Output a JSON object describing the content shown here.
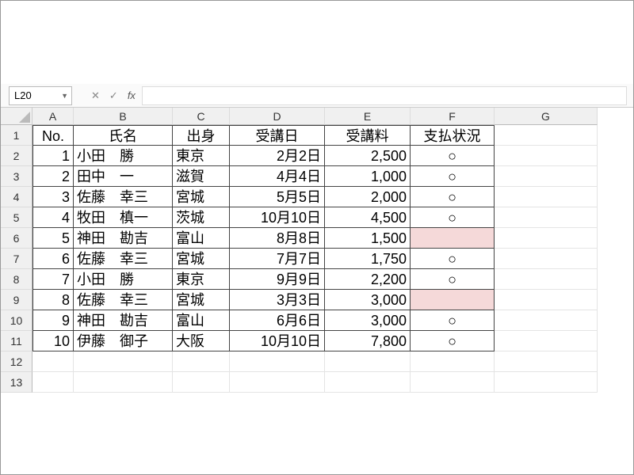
{
  "nameBox": {
    "ref": "L20"
  },
  "fbar": {
    "cancel": "✕",
    "confirm": "✓",
    "fx": "fx"
  },
  "columns": [
    "A",
    "B",
    "C",
    "D",
    "E",
    "F",
    "G"
  ],
  "colWidths": {
    "A": 52,
    "B": 125,
    "C": 72,
    "D": 120,
    "E": 108,
    "F": 106,
    "G": 130
  },
  "visibleRowCount": 13,
  "headerRow": {
    "A": "No.",
    "B": "氏名",
    "C": "出身",
    "D": "受講日",
    "E": "受講料",
    "F": "支払状況"
  },
  "records": [
    {
      "no": "1",
      "name": "小田　勝",
      "origin": "東京",
      "date": "2月2日",
      "fee": "2,500",
      "paid": "○",
      "paid_bg": "#ffffff"
    },
    {
      "no": "2",
      "name": "田中　一",
      "origin": "滋賀",
      "date": "4月4日",
      "fee": "1,000",
      "paid": "○",
      "paid_bg": "#ffffff"
    },
    {
      "no": "3",
      "name": "佐藤　幸三",
      "origin": "宮城",
      "date": "5月5日",
      "fee": "2,000",
      "paid": "○",
      "paid_bg": "#ffffff"
    },
    {
      "no": "4",
      "name": "牧田　槙一",
      "origin": "茨城",
      "date": "10月10日",
      "fee": "4,500",
      "paid": "○",
      "paid_bg": "#ffffff"
    },
    {
      "no": "5",
      "name": "神田　勘吉",
      "origin": "富山",
      "date": "8月8日",
      "fee": "1,500",
      "paid": "",
      "paid_bg": "#f5d9d9"
    },
    {
      "no": "6",
      "name": "佐藤　幸三",
      "origin": "宮城",
      "date": "7月7日",
      "fee": "1,750",
      "paid": "○",
      "paid_bg": "#ffffff"
    },
    {
      "no": "7",
      "name": "小田　勝",
      "origin": "東京",
      "date": "9月9日",
      "fee": "2,200",
      "paid": "○",
      "paid_bg": "#ffffff"
    },
    {
      "no": "8",
      "name": "佐藤　幸三",
      "origin": "宮城",
      "date": "3月3日",
      "fee": "3,000",
      "paid": "",
      "paid_bg": "#f5d9d9"
    },
    {
      "no": "9",
      "name": "神田　勘吉",
      "origin": "富山",
      "date": "6月6日",
      "fee": "3,000",
      "paid": "○",
      "paid_bg": "#ffffff"
    },
    {
      "no": "10",
      "name": "伊藤　御子",
      "origin": "大阪",
      "date": "10月10日",
      "fee": "7,800",
      "paid": "○",
      "paid_bg": "#ffffff"
    }
  ],
  "style": {
    "cell_border": "#444444",
    "grid_line": "#e4e4e4",
    "header_bg": "#f0f0f0",
    "highlight_bg": "#f5d9d9",
    "body_bg": "#ffffff",
    "font_size_cell": 18,
    "font_size_header": 14
  }
}
